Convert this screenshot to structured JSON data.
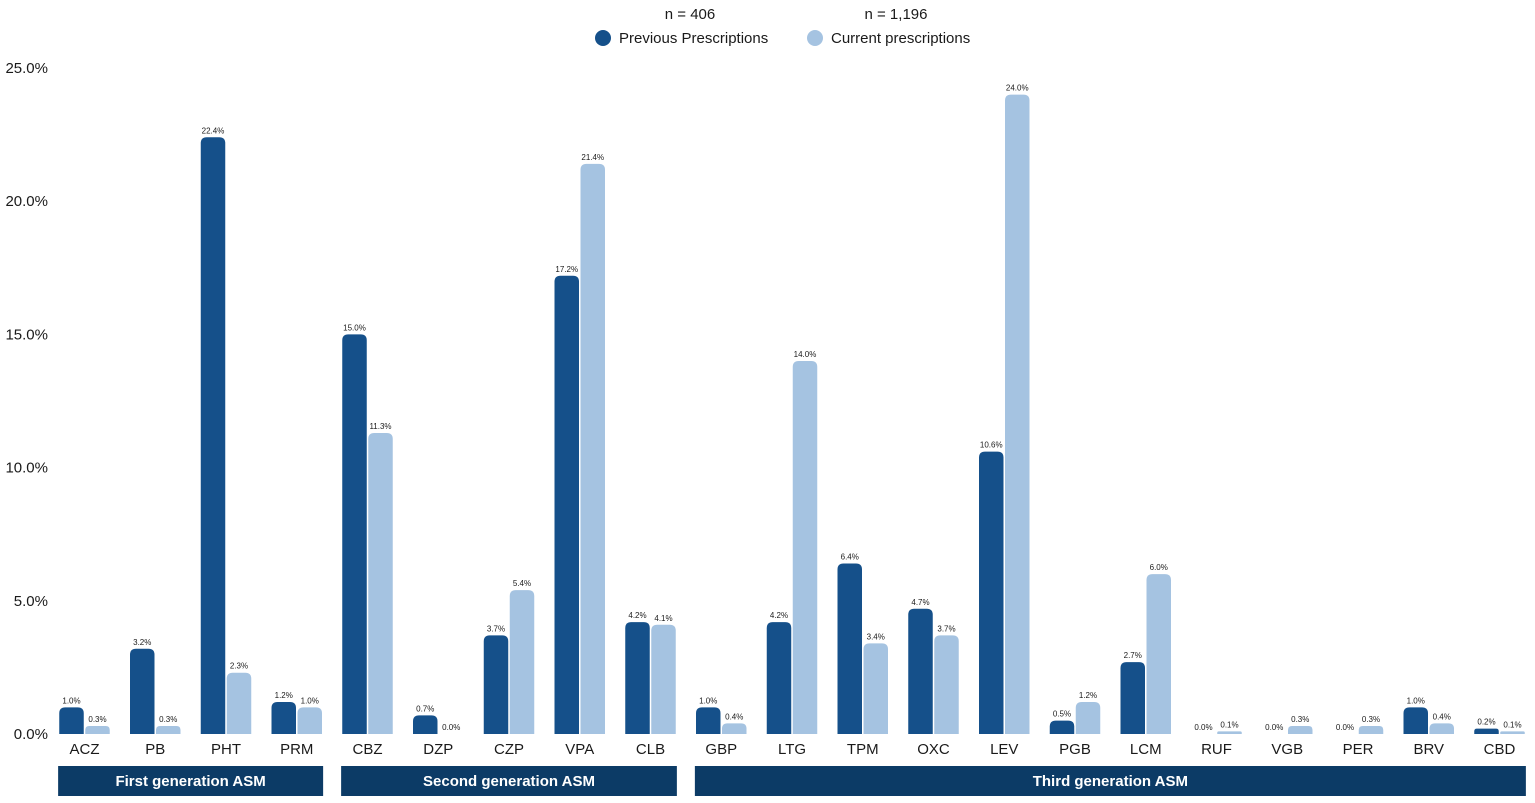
{
  "chart_data": {
    "type": "bar",
    "title": "",
    "xlabel": "",
    "ylabel": "",
    "ylim": [
      0,
      25
    ],
    "grid": false,
    "legend_position": "top-center",
    "y_ticks": [
      "0.0%",
      "5.0%",
      "10.0%",
      "15.0%",
      "20.0%",
      "25.0%"
    ],
    "categories": [
      "ACZ",
      "PB",
      "PHT",
      "PRM",
      "CBZ",
      "DZP",
      "CZP",
      "VPA",
      "CLB",
      "GBP",
      "LTG",
      "TPM",
      "OXC",
      "LEV",
      "PGB",
      "LCM",
      "RUF",
      "VGB",
      "PER",
      "BRV",
      "CBD"
    ],
    "series": [
      {
        "name": "Previous Prescriptions",
        "n_label": "n = 406",
        "color": "#15508a",
        "values": [
          1.0,
          3.2,
          22.4,
          1.2,
          15.0,
          0.7,
          3.7,
          17.2,
          4.2,
          1.0,
          4.2,
          6.4,
          4.7,
          10.6,
          0.5,
          2.7,
          0.0,
          0.0,
          0.0,
          1.0,
          0.2
        ],
        "labels": [
          "1.0%",
          "3.2%",
          "22.4%",
          "1.2%",
          "15.0%",
          "0.7%",
          "3.7%",
          "17.2%",
          "4.2%",
          "1.0%",
          "4.2%",
          "6.4%",
          "4.7%",
          "10.6%",
          "0.5%",
          "2.7%",
          "0.0%",
          "0.0%",
          "0.0%",
          "1.0%",
          "0.2%"
        ]
      },
      {
        "name": "Current prescriptions",
        "n_label": "n = 1,196",
        "color": "#a5c3e1",
        "values": [
          0.3,
          0.3,
          2.3,
          1.0,
          11.3,
          0.0,
          5.4,
          21.4,
          4.1,
          0.4,
          14.0,
          3.4,
          3.7,
          24.0,
          1.2,
          6.0,
          0.1,
          0.3,
          0.3,
          0.4,
          0.1
        ],
        "labels": [
          "0.3%",
          "0.3%",
          "2.3%",
          "1.0%",
          "11.3%",
          "0.0%",
          "5.4%",
          "21.4%",
          "4.1%",
          "0.4%",
          "14.0%",
          "3.4%",
          "3.7%",
          "24.0%",
          "1.2%",
          "6.0%",
          "0.1%",
          "0.3%",
          "0.3%",
          "0.4%",
          "0.1%"
        ]
      }
    ],
    "groups": [
      {
        "label": "First generation ASM",
        "start": 0,
        "end": 3
      },
      {
        "label": "Second generation ASM",
        "start": 4,
        "end": 8
      },
      {
        "label": "Third generation ASM",
        "start": 9,
        "end": 20
      }
    ],
    "group_color": "#0c3b66"
  }
}
